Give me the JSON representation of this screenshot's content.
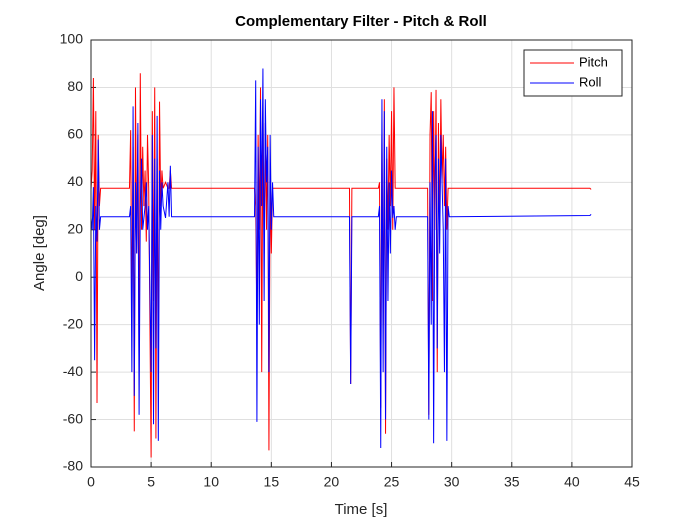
{
  "chart_data": {
    "type": "line",
    "title": "Complementary Filter - Pitch & Roll",
    "x_label": "Time [s]",
    "y_label": "Angle [deg]",
    "x": [
      0,
      0.1,
      0.2,
      0.3,
      0.4,
      0.5,
      0.6,
      0.7,
      0.8,
      3.2,
      3.3,
      3.4,
      3.5,
      3.6,
      3.7,
      3.8,
      3.9,
      4.0,
      4.1,
      4.2,
      4.3,
      4.4,
      4.5,
      4.6,
      4.7,
      4.8,
      5.0,
      5.1,
      5.2,
      5.3,
      5.4,
      5.5,
      5.6,
      5.7,
      5.8,
      5.9,
      6.0,
      6.2,
      6.4,
      6.5,
      6.6,
      6.7,
      13.6,
      13.7,
      13.8,
      13.9,
      14.0,
      14.1,
      14.2,
      14.3,
      14.4,
      14.5,
      14.6,
      14.7,
      14.8,
      14.9,
      15.0,
      15.1,
      15.2,
      21.5,
      21.6,
      21.7,
      23.9,
      24.0,
      24.1,
      24.2,
      24.3,
      24.4,
      24.5,
      24.6,
      24.7,
      24.8,
      24.9,
      25.0,
      25.1,
      25.2,
      25.3,
      25.4,
      28.0,
      28.1,
      28.2,
      28.3,
      28.4,
      28.5,
      28.6,
      28.7,
      28.8,
      28.9,
      29.0,
      29.1,
      29.2,
      29.3,
      29.4,
      29.5,
      29.6,
      29.7,
      29.8,
      41.5,
      41.6
    ],
    "series": [
      {
        "name": "Pitch",
        "color": "#ff0000",
        "values": [
          37,
          45,
          84,
          20,
          70,
          -53,
          60,
          30,
          37.5,
          37.5,
          62,
          -20,
          55,
          -65,
          80,
          10,
          60,
          -40,
          86,
          20,
          55,
          30,
          45,
          15,
          60,
          37.5,
          -76,
          70,
          -10,
          80,
          -68,
          50,
          -40,
          74,
          30,
          45,
          37.5,
          40,
          37.5,
          37.5,
          45,
          37.5,
          37.5,
          30,
          -20,
          60,
          20,
          80,
          -40,
          70,
          10,
          65,
          20,
          60,
          -73,
          40,
          10,
          37.5,
          37.5,
          37.5,
          -45,
          37.5,
          37.5,
          40,
          -55,
          60,
          -20,
          75,
          -66,
          50,
          20,
          60,
          30,
          70,
          20,
          80,
          37.5,
          37.5,
          37.5,
          -58,
          60,
          78,
          -10,
          70,
          20,
          79,
          -40,
          65,
          20,
          75,
          40,
          60,
          30,
          55,
          20,
          37.5,
          37.5,
          37.5,
          37
        ]
      },
      {
        "name": "Roll",
        "color": "#0000ff",
        "values": [
          25,
          20,
          38,
          -35,
          30,
          15,
          58,
          20,
          25.5,
          25.5,
          30,
          -40,
          72,
          -50,
          40,
          10,
          65,
          -58,
          30,
          50,
          20,
          25,
          30,
          40,
          20,
          30,
          -40,
          60,
          -62,
          50,
          -30,
          68,
          -69,
          45,
          20,
          40,
          30,
          25,
          40,
          25.5,
          47,
          25.5,
          25.5,
          83,
          -61,
          55,
          -20,
          75,
          30,
          88,
          -10,
          75,
          40,
          55,
          -40,
          60,
          20,
          40,
          25.5,
          25.5,
          -45,
          25.5,
          25.5,
          30,
          -72,
          75,
          -40,
          70,
          -60,
          55,
          -10,
          40,
          10,
          45,
          25,
          30,
          20,
          25.5,
          25.5,
          -60,
          40,
          -20,
          70,
          -70,
          40,
          60,
          -30,
          50,
          10,
          60,
          40,
          20,
          -40,
          50,
          -69,
          30,
          25.5,
          26,
          26.5
        ]
      }
    ],
    "xlim": [
      0,
      45
    ],
    "ylim": [
      -80,
      100
    ],
    "xticks": [
      0,
      5,
      10,
      15,
      20,
      25,
      30,
      35,
      40,
      45
    ],
    "yticks": [
      -80,
      -60,
      -40,
      -20,
      0,
      20,
      40,
      60,
      80,
      100
    ],
    "grid": true,
    "legend": "northeast"
  }
}
